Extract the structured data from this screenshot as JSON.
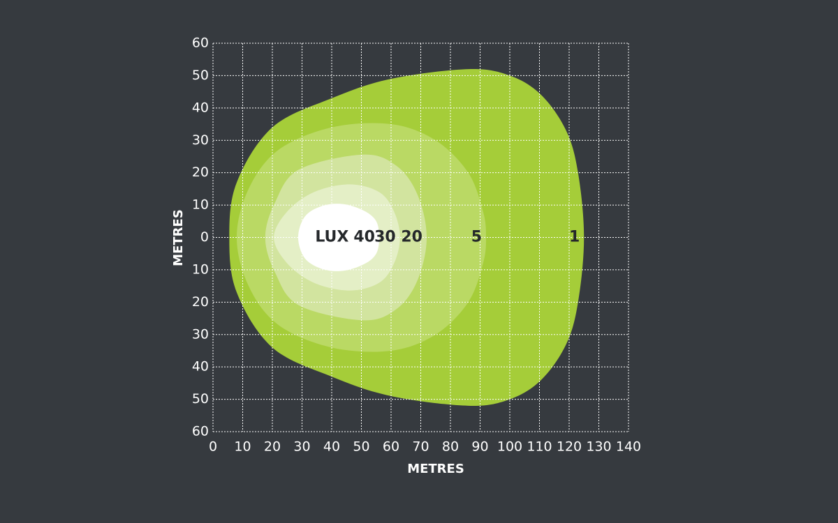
{
  "chart_data": {
    "type": "contour",
    "x_label": "METRES",
    "y_label": "METRES",
    "zone_label_prefix": "LUX",
    "xlim": [
      0,
      140
    ],
    "xticks": [
      0,
      10,
      20,
      30,
      40,
      50,
      60,
      70,
      80,
      90,
      100,
      110,
      120,
      130,
      140
    ],
    "ylim": [
      -60,
      60
    ],
    "yticks": [
      {
        "value": -60,
        "label": "60"
      },
      {
        "value": -50,
        "label": "50"
      },
      {
        "value": -40,
        "label": "40"
      },
      {
        "value": -30,
        "label": "30"
      },
      {
        "value": -20,
        "label": "20"
      },
      {
        "value": -10,
        "label": "10"
      },
      0,
      10,
      20,
      30,
      40,
      50,
      60
    ],
    "grid": true,
    "series": [
      {
        "name": "1",
        "color": "#a5cd39",
        "x": [
          5.5,
          8,
          20,
          40,
          60,
          86,
          100,
          110.6,
          119,
          123,
          125,
          123,
          119,
          110.6,
          100,
          86,
          60,
          40,
          20,
          8
        ],
        "y": [
          0,
          17,
          34,
          43,
          49,
          52,
          50,
          44,
          33,
          20,
          0,
          -20,
          -33,
          -44,
          -50,
          -52,
          -49,
          -43,
          -34,
          -17
        ]
      },
      {
        "name": "5",
        "color": "#bad964",
        "x": [
          8,
          12,
          22,
          40,
          60,
          75,
          86,
          91,
          92,
          91,
          86,
          75,
          60,
          40,
          22,
          12
        ],
        "y": [
          0,
          15,
          27,
          34,
          35,
          30,
          20,
          8,
          0,
          -8,
          -20,
          -30,
          -35,
          -34,
          -27,
          -15
        ]
      },
      {
        "name": "20",
        "color": "#d2e49f",
        "x": [
          17.6,
          21,
          29,
          50.6,
          62,
          69,
          72,
          69,
          62,
          50.6,
          29,
          21
        ],
        "y": [
          0,
          11,
          21,
          25.6,
          22,
          13,
          0,
          -13,
          -22,
          -25.6,
          -21,
          -11
        ]
      },
      {
        "name": "30",
        "color": "#e4efc6",
        "x": [
          20.5,
          25,
          34,
          46,
          56,
          61,
          63,
          61,
          56,
          46,
          34,
          25
        ],
        "y": [
          0,
          8,
          14,
          16.4,
          14,
          8,
          0,
          -8,
          -14,
          -16.4,
          -14,
          -8
        ]
      },
      {
        "name": "40",
        "color": "#ffffff",
        "x": [
          28.7,
          31,
          37,
          44,
          51,
          55,
          56,
          55,
          51,
          44,
          37,
          31
        ],
        "y": [
          0,
          6.5,
          9.8,
          10.3,
          8.2,
          5,
          0,
          -5,
          -8.2,
          -10.3,
          -9.8,
          -6.5
        ]
      }
    ]
  }
}
